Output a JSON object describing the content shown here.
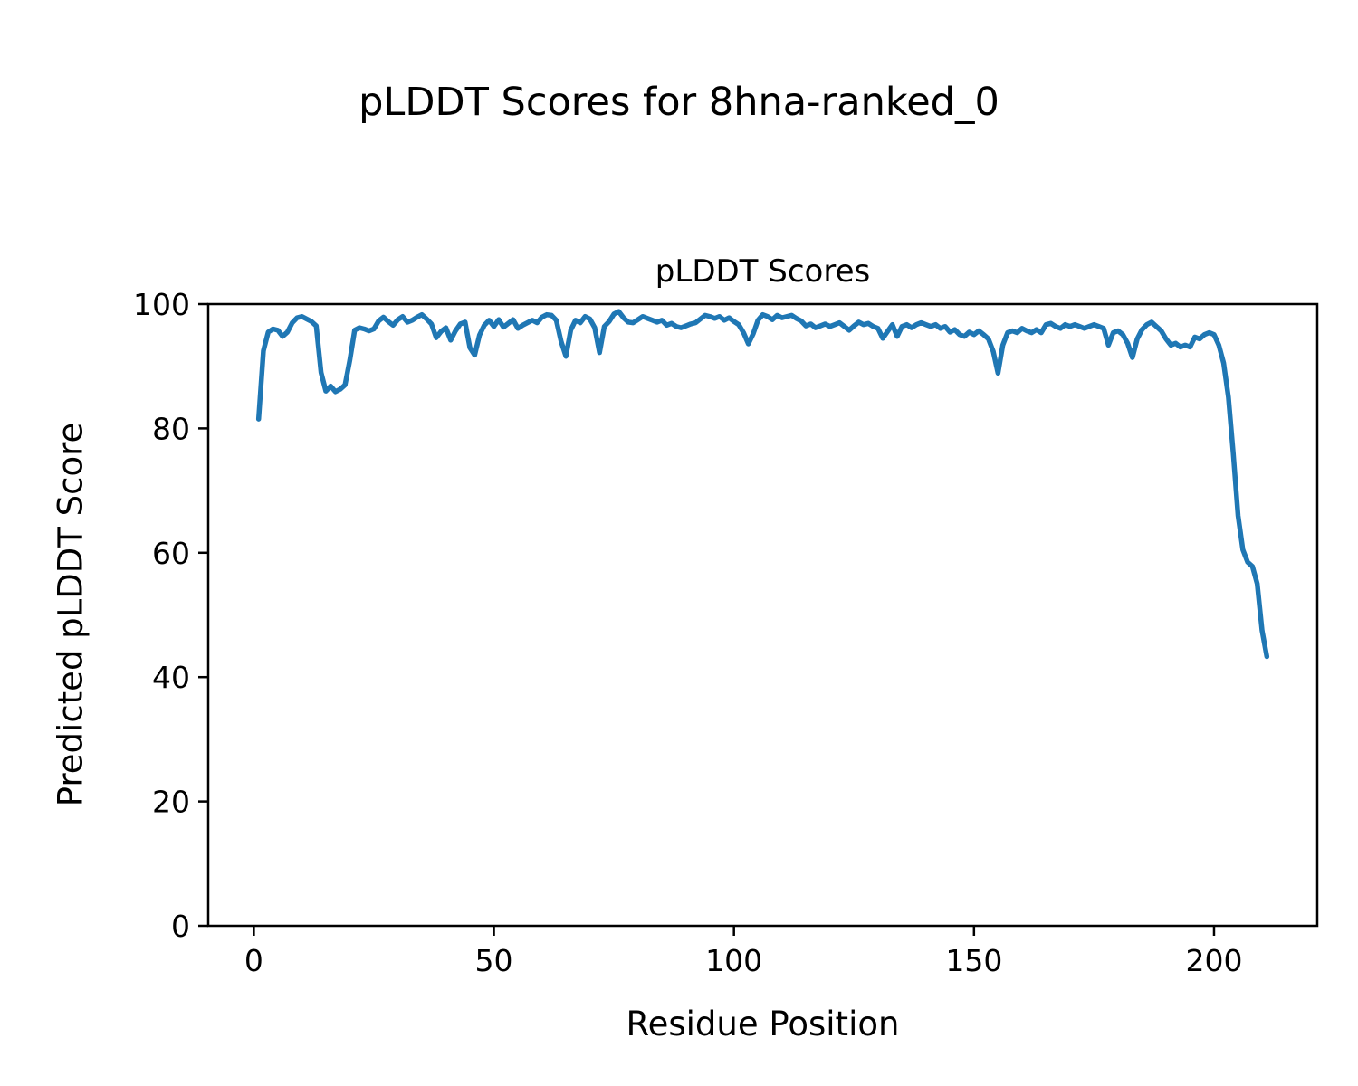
{
  "figure": {
    "suptitle": "pLDDT Scores for 8hna-ranked_0",
    "axes_title": "pLDDT Scores",
    "xlabel": "Residue Position",
    "ylabel": "Predicted pLDDT Score"
  },
  "chart_data": {
    "type": "line",
    "title": "pLDDT Scores",
    "suptitle": "pLDDT Scores for 8hna-ranked_0",
    "xlabel": "Residue Position",
    "ylabel": "Predicted pLDDT Score",
    "line_color": "#1f77b4",
    "background_color": "#ffffff",
    "grid": false,
    "legend_position": "none",
    "xlim": [
      -9.5,
      221.5
    ],
    "ylim": [
      0,
      100
    ],
    "xticks": [
      0,
      50,
      100,
      150,
      200
    ],
    "yticks": [
      0,
      20,
      40,
      60,
      80,
      100
    ],
    "series": [
      {
        "name": "pLDDT",
        "x": [
          1,
          2,
          3,
          4,
          5,
          6,
          7,
          8,
          9,
          10,
          11,
          12,
          13,
          14,
          15,
          16,
          17,
          18,
          19,
          20,
          21,
          22,
          23,
          24,
          25,
          26,
          27,
          28,
          29,
          30,
          31,
          32,
          33,
          34,
          35,
          36,
          37,
          38,
          39,
          40,
          41,
          42,
          43,
          44,
          45,
          46,
          47,
          48,
          49,
          50,
          51,
          52,
          53,
          54,
          55,
          56,
          57,
          58,
          59,
          60,
          61,
          62,
          63,
          64,
          65,
          66,
          67,
          68,
          69,
          70,
          71,
          72,
          73,
          74,
          75,
          76,
          77,
          78,
          79,
          80,
          81,
          82,
          83,
          84,
          85,
          86,
          87,
          88,
          89,
          90,
          91,
          92,
          93,
          94,
          95,
          96,
          97,
          98,
          99,
          100,
          101,
          102,
          103,
          104,
          105,
          106,
          107,
          108,
          109,
          110,
          111,
          112,
          113,
          114,
          115,
          116,
          117,
          118,
          119,
          120,
          121,
          122,
          123,
          124,
          125,
          126,
          127,
          128,
          129,
          130,
          131,
          132,
          133,
          134,
          135,
          136,
          137,
          138,
          139,
          140,
          141,
          142,
          143,
          144,
          145,
          146,
          147,
          148,
          149,
          150,
          151,
          152,
          153,
          154,
          155,
          156,
          157,
          158,
          159,
          160,
          161,
          162,
          163,
          164,
          165,
          166,
          167,
          168,
          169,
          170,
          171,
          172,
          173,
          174,
          175,
          176,
          177,
          178,
          179,
          180,
          181,
          182,
          183,
          184,
          185,
          186,
          187,
          188,
          189,
          190,
          191,
          192,
          193,
          194,
          195,
          196,
          197,
          198,
          199,
          200,
          201,
          202,
          203,
          204,
          205,
          206,
          207,
          208,
          209,
          210,
          211
        ],
        "y": [
          81.5,
          92.5,
          95.5,
          96.0,
          95.8,
          94.8,
          95.5,
          97.0,
          97.8,
          98.0,
          97.6,
          97.2,
          96.5,
          89.0,
          86.0,
          86.8,
          85.9,
          86.3,
          87.0,
          91.0,
          95.8,
          96.2,
          96.0,
          95.7,
          96.0,
          97.3,
          97.9,
          97.2,
          96.6,
          97.5,
          98.0,
          97.1,
          97.4,
          97.9,
          98.3,
          97.6,
          96.8,
          94.6,
          95.6,
          96.2,
          94.2,
          95.7,
          96.8,
          97.1,
          93.0,
          91.8,
          95.0,
          96.6,
          97.4,
          96.4,
          97.5,
          96.3,
          96.9,
          97.5,
          96.1,
          96.6,
          97.0,
          97.4,
          97.0,
          97.9,
          98.3,
          98.2,
          97.4,
          94.0,
          91.6,
          95.8,
          97.4,
          97.0,
          98.0,
          97.6,
          96.2,
          92.2,
          96.4,
          97.2,
          98.4,
          98.8,
          97.8,
          97.1,
          97.0,
          97.5,
          98.0,
          97.7,
          97.4,
          97.1,
          97.4,
          96.6,
          96.9,
          96.4,
          96.2,
          96.5,
          96.8,
          97.0,
          97.6,
          98.2,
          98.0,
          97.7,
          98.0,
          97.4,
          97.8,
          97.2,
          96.7,
          95.4,
          93.6,
          95.2,
          97.4,
          98.3,
          98.0,
          97.5,
          98.2,
          97.8,
          98.0,
          98.2,
          97.7,
          97.3,
          96.5,
          96.8,
          96.2,
          96.5,
          96.8,
          96.4,
          96.7,
          97.0,
          96.4,
          95.8,
          96.5,
          97.1,
          96.7,
          96.9,
          96.4,
          96.1,
          94.5,
          95.6,
          96.7,
          94.8,
          96.4,
          96.7,
          96.2,
          96.7,
          97.0,
          96.7,
          96.4,
          96.7,
          96.1,
          96.4,
          95.5,
          95.9,
          95.1,
          94.8,
          95.5,
          95.1,
          95.7,
          95.1,
          94.4,
          92.4,
          88.9,
          93.4,
          95.4,
          95.7,
          95.4,
          96.1,
          95.7,
          95.4,
          95.9,
          95.4,
          96.7,
          96.9,
          96.4,
          96.1,
          96.7,
          96.4,
          96.7,
          96.4,
          96.1,
          96.4,
          96.7,
          96.4,
          96.1,
          93.4,
          95.4,
          95.7,
          95.1,
          93.7,
          91.4,
          94.4,
          95.9,
          96.7,
          97.1,
          96.4,
          95.7,
          94.4,
          93.4,
          93.7,
          93.1,
          93.4,
          93.1,
          94.7,
          94.4,
          95.1,
          95.4,
          95.1,
          93.4,
          90.5,
          85.0,
          76.0,
          66.0,
          60.5,
          58.5,
          57.8,
          55.0,
          47.5,
          43.3
        ]
      }
    ]
  }
}
